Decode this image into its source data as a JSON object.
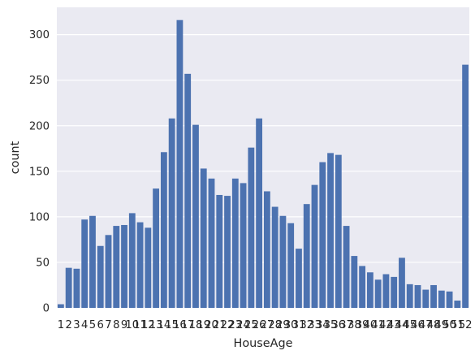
{
  "chart_data": {
    "type": "bar",
    "xlabel": "HouseAge",
    "ylabel": "count",
    "ylim": [
      0,
      330
    ],
    "yticks": [
      0,
      50,
      100,
      150,
      200,
      250,
      300
    ],
    "grid": true,
    "categories": [
      "1",
      "2",
      "3",
      "4",
      "5",
      "6",
      "7",
      "8",
      "9",
      "10",
      "11",
      "12",
      "13",
      "14",
      "15",
      "16",
      "17",
      "18",
      "19",
      "20",
      "21",
      "22",
      "23",
      "24",
      "25",
      "26",
      "27",
      "28",
      "29",
      "30",
      "31",
      "32",
      "33",
      "34",
      "35",
      "36",
      "37",
      "38",
      "39",
      "40",
      "41",
      "42",
      "43",
      "44",
      "45",
      "46",
      "47",
      "48",
      "49",
      "50",
      "51",
      "52"
    ],
    "values": [
      4,
      44,
      43,
      97,
      101,
      68,
      80,
      90,
      91,
      104,
      94,
      88,
      131,
      171,
      208,
      316,
      257,
      201,
      153,
      142,
      124,
      123,
      142,
      137,
      176,
      208,
      128,
      111,
      101,
      93,
      65,
      114,
      135,
      160,
      170,
      168,
      90,
      57,
      46,
      39,
      31,
      37,
      34,
      55,
      26,
      25,
      20,
      25,
      19,
      18,
      8,
      267
    ],
    "colors": {
      "bar": "#4c72b0",
      "plot_background": "#eaeaf2",
      "grid": "#ffffff",
      "text": "#262626"
    }
  }
}
